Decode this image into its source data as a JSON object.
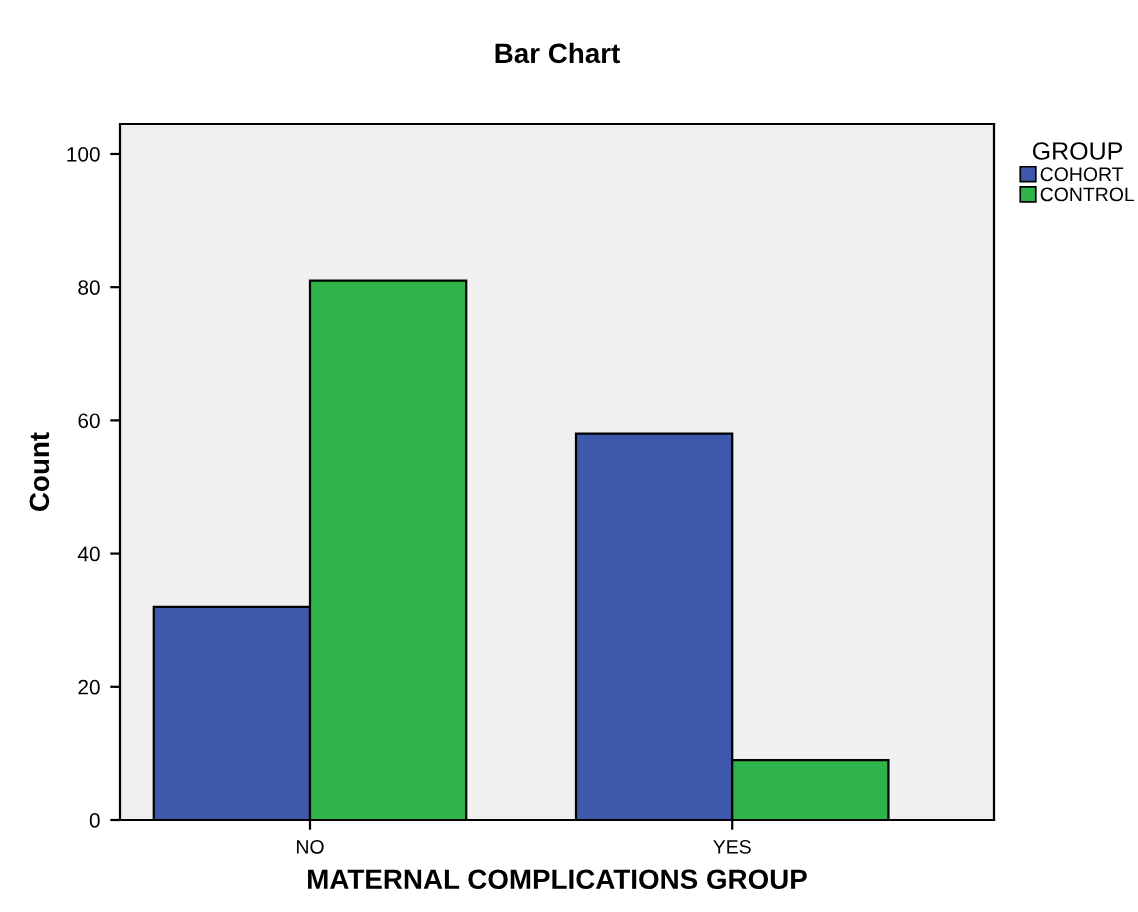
{
  "chart_data": {
    "type": "bar",
    "title": "Bar Chart",
    "xlabel": "MATERNAL COMPLICATIONS GROUP",
    "ylabel": "Count",
    "legend_title": "GROUP",
    "categories": [
      "NO",
      "YES"
    ],
    "series": [
      {
        "name": "COHORT",
        "color": "#3e58ac",
        "values": [
          32,
          58
        ]
      },
      {
        "name": "CONTROL",
        "color": "#2fb44a",
        "values": [
          81,
          9
        ]
      }
    ],
    "ylim": [
      0,
      104.5
    ],
    "yticks": [
      0,
      20,
      40,
      60,
      80,
      100
    ],
    "grid": false,
    "legend": "top right"
  }
}
